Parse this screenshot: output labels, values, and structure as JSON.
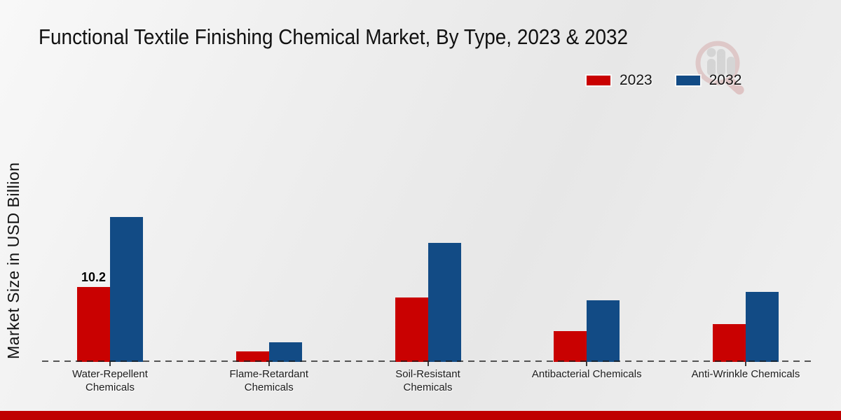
{
  "title": "Functional Textile Finishing Chemical Market, By Type, 2023 & 2032",
  "y_axis_label": "Market Size in USD Billion",
  "legend": {
    "items": [
      {
        "label": "2023",
        "color": "#c90101"
      },
      {
        "label": "2032",
        "color": "#124b85"
      }
    ]
  },
  "chart_data": {
    "type": "bar",
    "title": "Functional Textile Finishing Chemical Market, By Type, 2023 & 2032",
    "ylabel": "Market Size in USD Billion",
    "xlabel": "",
    "units": "USD Billion",
    "categories": [
      "Water-Repellent Chemicals",
      "Flame-Retardant Chemicals",
      "Soil-Resistant Chemicals",
      "Antibacterial Chemicals",
      "Anti-Wrinkle Chemicals"
    ],
    "series": [
      {
        "name": "2023",
        "color": "#c90101",
        "values": [
          10.2,
          1.4,
          8.8,
          4.2,
          5.1
        ]
      },
      {
        "name": "2032",
        "color": "#124b85",
        "values": [
          19.7,
          2.7,
          16.2,
          8.4,
          9.5
        ]
      }
    ],
    "bar_labels": [
      {
        "series_index": 0,
        "category_index": 0,
        "text": "10.2"
      }
    ],
    "ylim": [
      0,
      22
    ],
    "grid": false,
    "y_tick_labels_shown": false,
    "legend_position": "top-right",
    "baseline_style": "dashed"
  },
  "footer": {
    "accent_color": "#bf0000"
  },
  "watermark_icon": "magnifier-bar-chart-logo"
}
